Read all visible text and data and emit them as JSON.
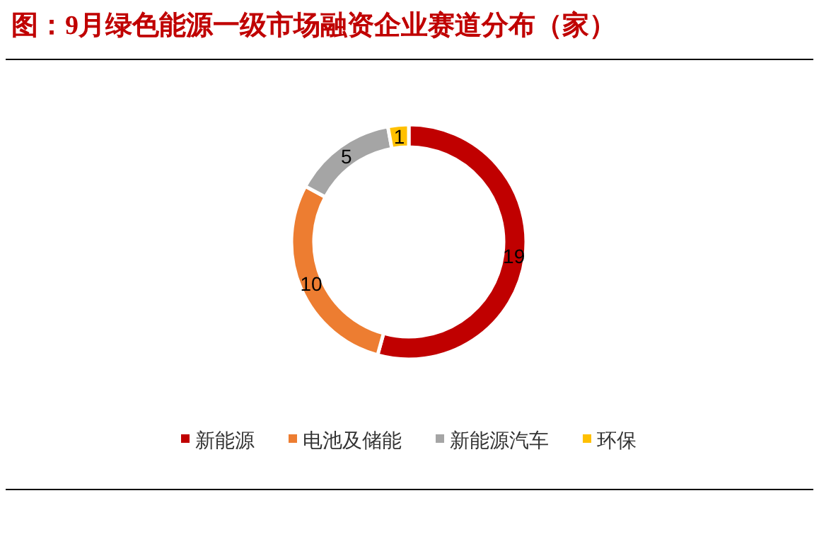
{
  "chart_data": {
    "type": "donut",
    "title": "图：9月绿色能源一级市场融资企业赛道分布（家）",
    "categories": [
      "新能源",
      "电池及储能",
      "新能源汽车",
      "环保"
    ],
    "values": [
      19,
      10,
      5,
      1
    ],
    "colors": [
      "#c00000",
      "#ed7d31",
      "#a5a5a5",
      "#ffc000"
    ],
    "data_labels": true,
    "legend": "bottom"
  }
}
